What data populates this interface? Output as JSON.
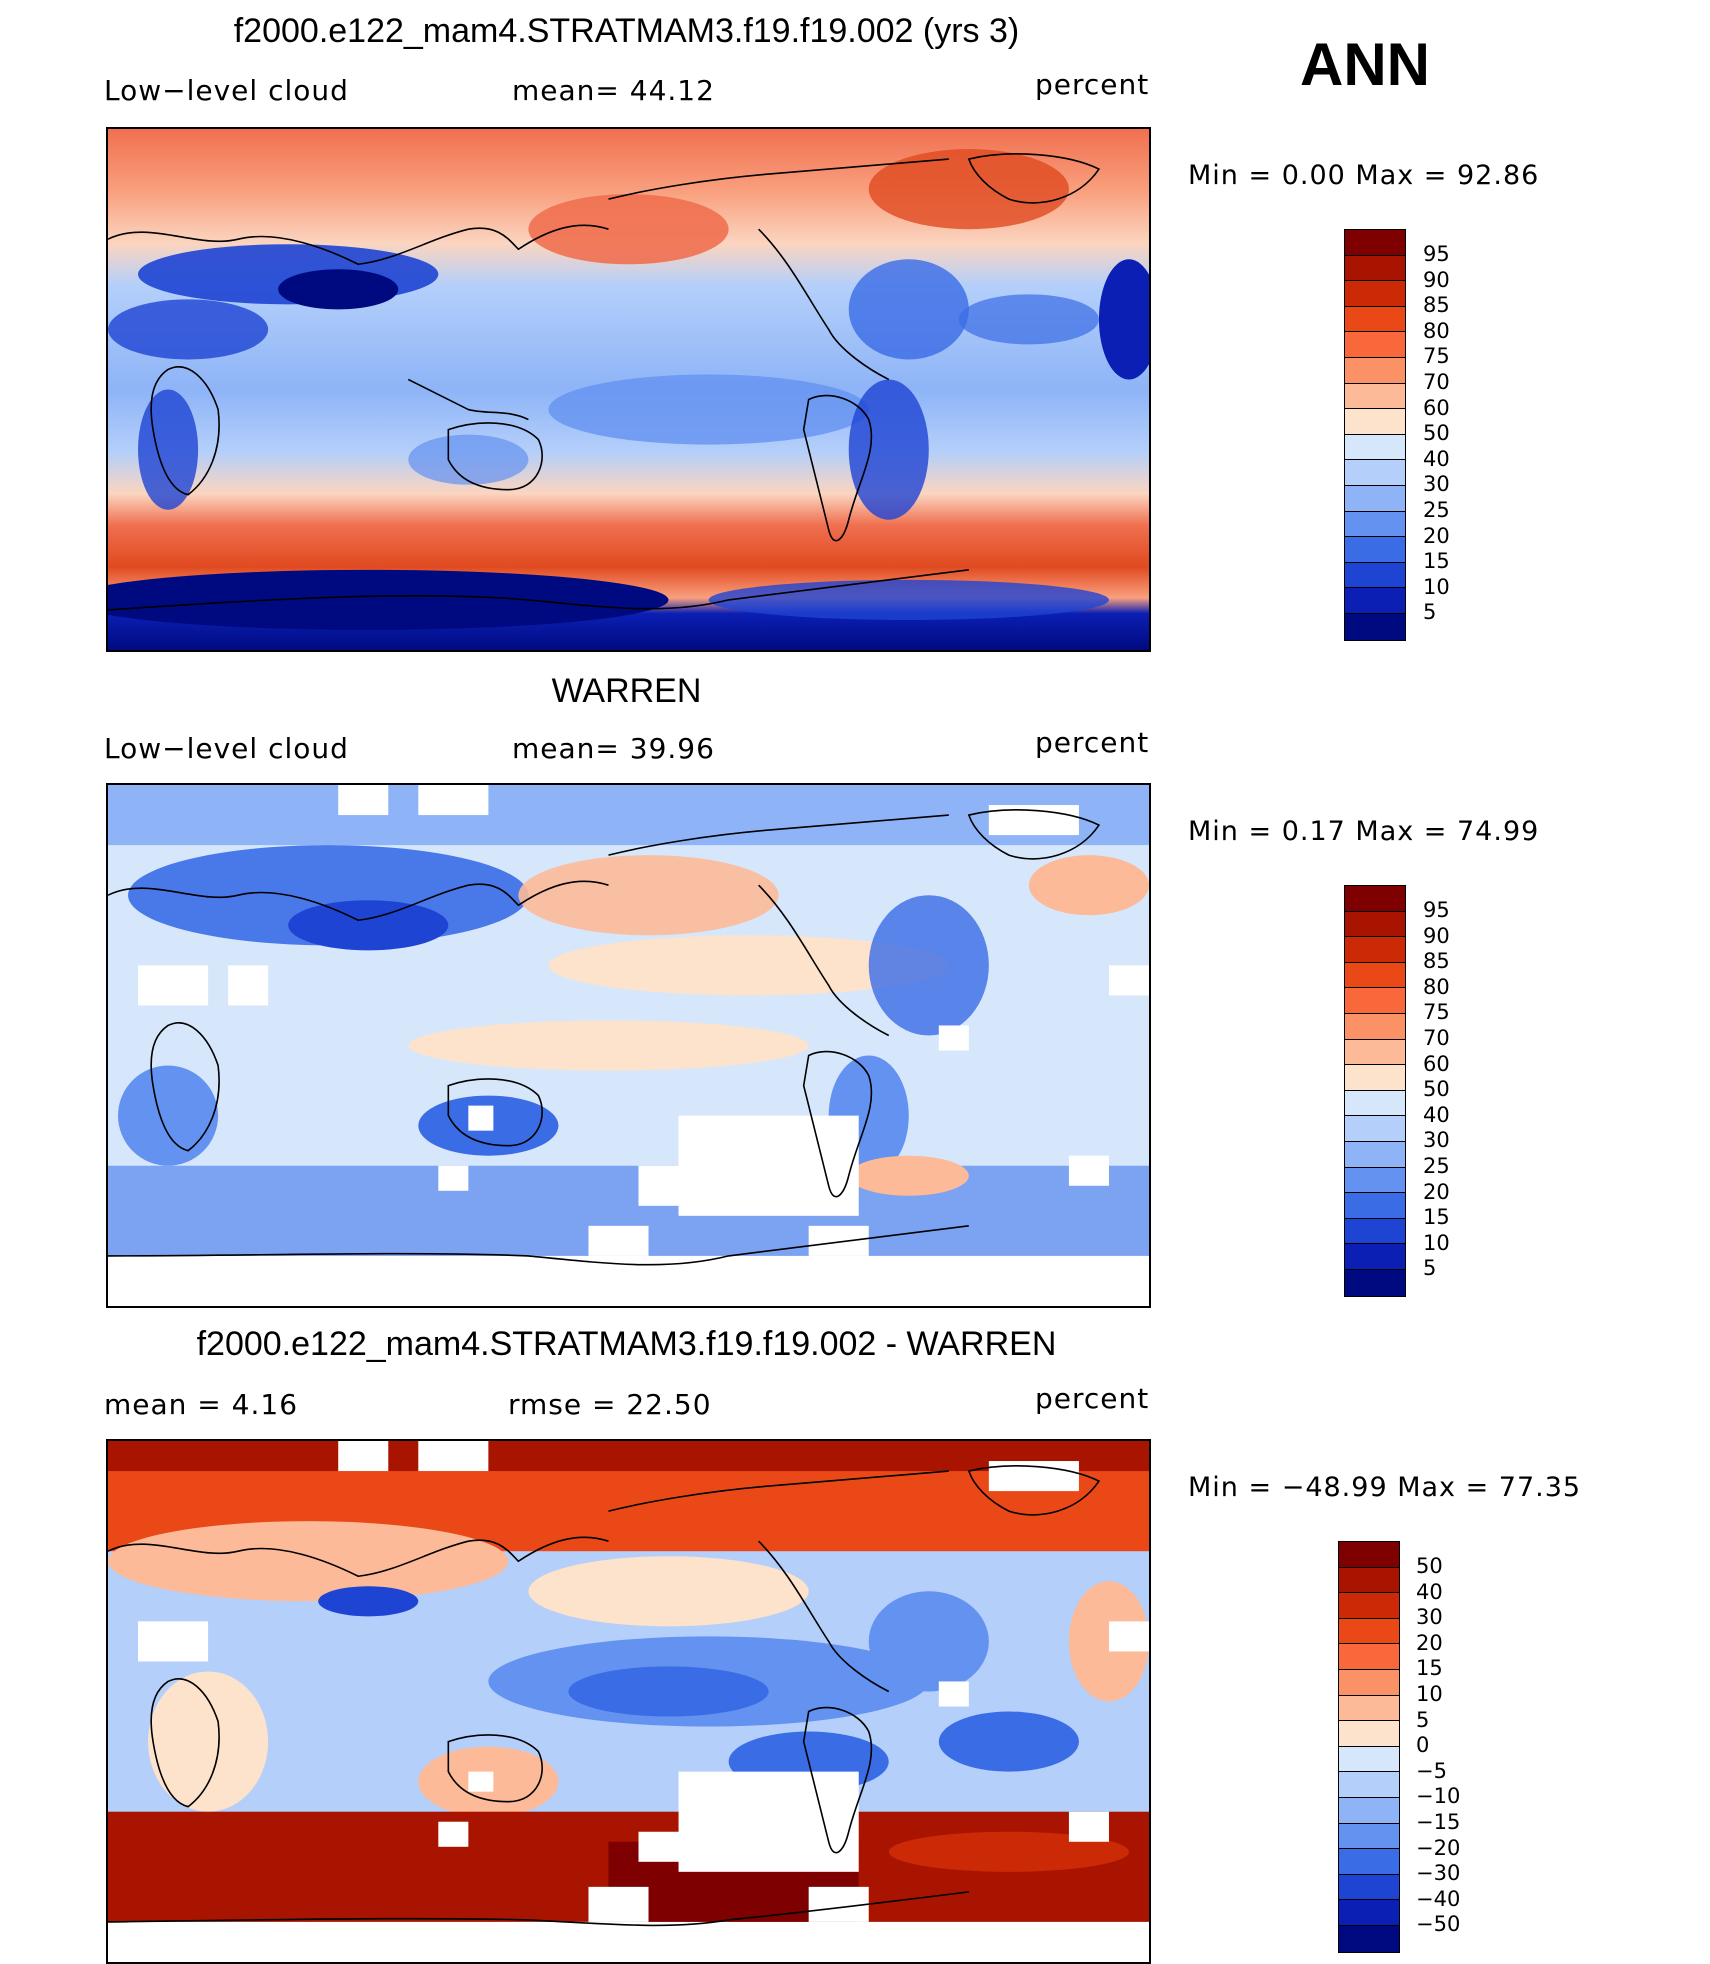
{
  "season": "ANN",
  "panels": [
    {
      "title": "f2000.e122_mam4.STRATMAM3.f19.f19.002 (yrs 3)",
      "left_label": "Low−level  cloud",
      "stat1": "mean=   44.12",
      "units": "percent",
      "minmax": "Min  =    0.00  Max  =    92.86",
      "colorbar_labels": [
        "95",
        "90",
        "85",
        "80",
        "75",
        "70",
        "60",
        "50",
        "40",
        "30",
        "25",
        "20",
        "15",
        "10",
        "5"
      ],
      "colorbar_colors": [
        "#7f0000",
        "#a81400",
        "#cc2a06",
        "#ea4817",
        "#f9683a",
        "#fb9266",
        "#fcba98",
        "#fde2cc",
        "#d7e7fb",
        "#b4cffa",
        "#8eb4f7",
        "#6492f0",
        "#3a6ce6",
        "#1e44d3",
        "#0b1fb4",
        "#000a80"
      ]
    },
    {
      "title": "WARREN",
      "left_label": "Low−level  cloud",
      "stat1": "mean=   39.96",
      "units": "percent",
      "minmax": "Min  =    0.17  Max  =    74.99",
      "colorbar_labels": [
        "95",
        "90",
        "85",
        "80",
        "75",
        "70",
        "60",
        "50",
        "40",
        "30",
        "25",
        "20",
        "15",
        "10",
        "5"
      ],
      "colorbar_colors": [
        "#7f0000",
        "#a81400",
        "#cc2a06",
        "#ea4817",
        "#f9683a",
        "#fb9266",
        "#fcba98",
        "#fde2cc",
        "#d7e7fb",
        "#b4cffa",
        "#8eb4f7",
        "#6492f0",
        "#3a6ce6",
        "#1e44d3",
        "#0b1fb4",
        "#000a80"
      ]
    },
    {
      "title": "f2000.e122_mam4.STRATMAM3.f19.f19.002 - WARREN",
      "left_label": "mean  =     4.16",
      "stat1": "rmse  =   22.50",
      "units": "percent",
      "minmax": "Min  =  −48.99  Max  =    77.35",
      "colorbar_labels": [
        "50",
        "40",
        "30",
        "20",
        "15",
        "10",
        "5",
        "0",
        "−5",
        "−10",
        "−15",
        "−20",
        "−30",
        "−40",
        "−50"
      ],
      "colorbar_colors": [
        "#7f0000",
        "#a81400",
        "#cc2a06",
        "#ea4817",
        "#f9683a",
        "#fb9266",
        "#fcba98",
        "#fde2cc",
        "#d7e7fb",
        "#b4cffa",
        "#8eb4f7",
        "#6492f0",
        "#3a6ce6",
        "#1e44d3",
        "#0b1fb4",
        "#000a80"
      ]
    }
  ]
}
